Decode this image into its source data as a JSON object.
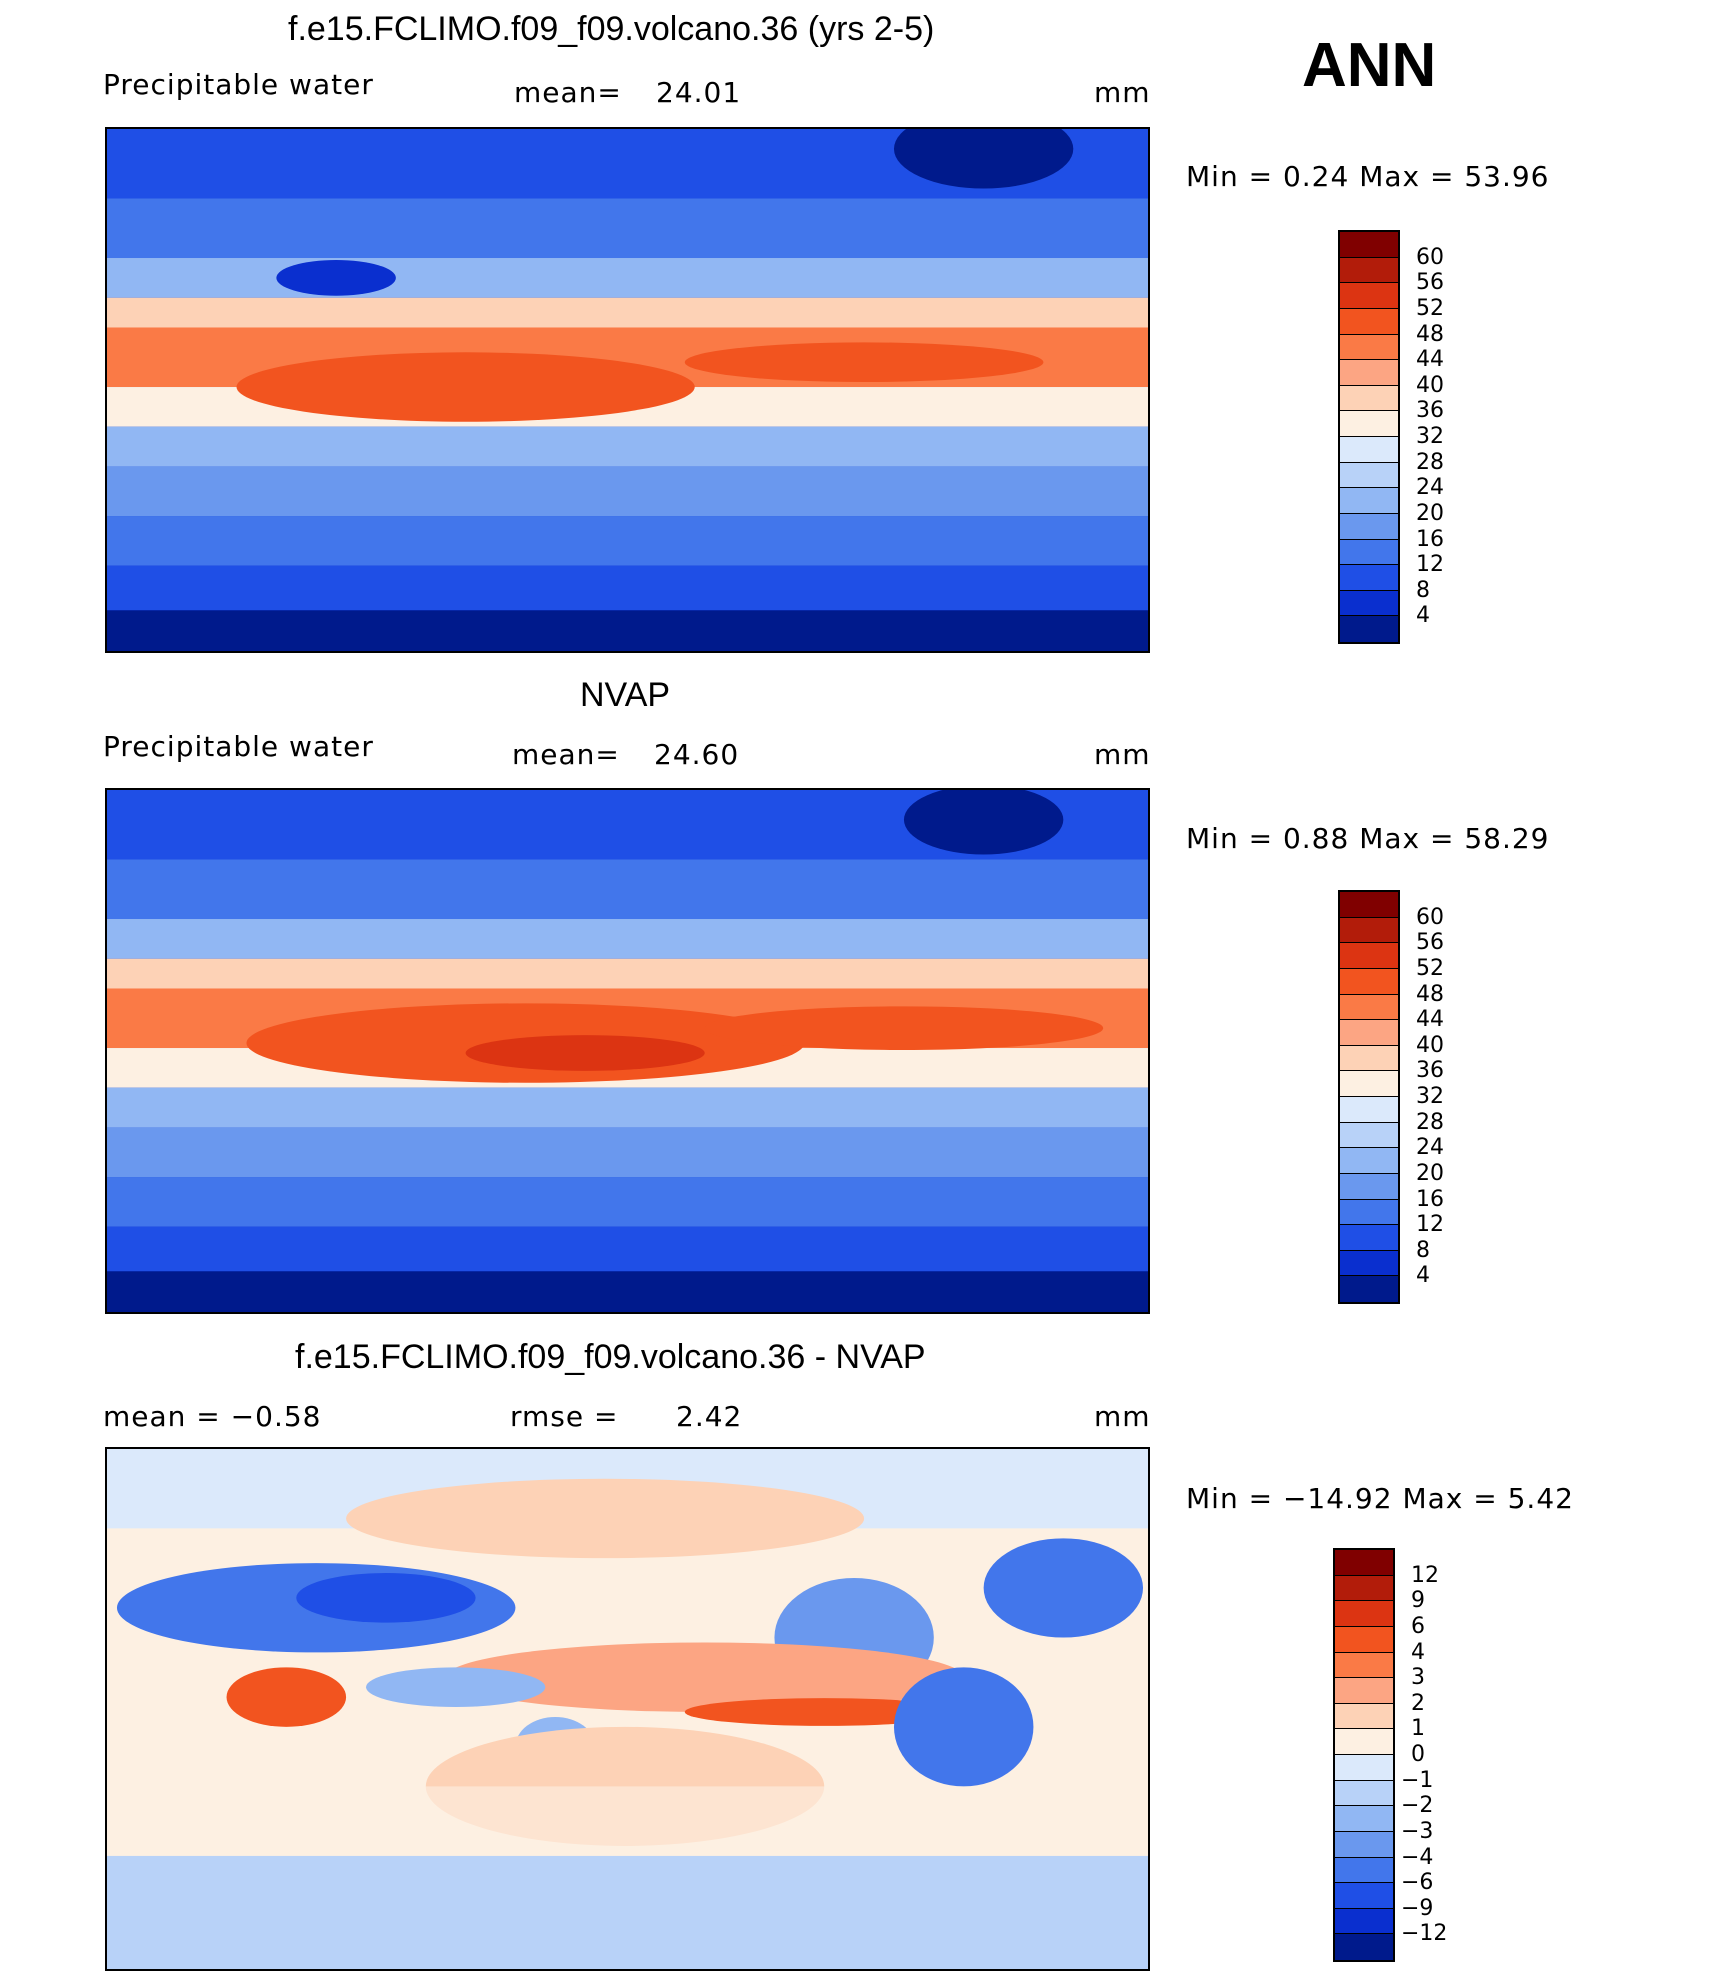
{
  "season": "ANN",
  "units": "mm",
  "coast_icon": "coastline-outline",
  "panels": [
    {
      "id": "model",
      "title": "f.e15.FCLIMO.f09_f09.volcano.36 (yrs 2-5)",
      "left_label": "Precipitable  water",
      "stat_label": "mean=",
      "stat_value": "24.01",
      "units": "mm",
      "minmax_label": "Min  =     0.24  Max  =     53.96",
      "colorbar": {
        "levels": [
          "60",
          "56",
          "52",
          "48",
          "44",
          "40",
          "36",
          "32",
          "28",
          "24",
          "20",
          "16",
          "12",
          "8",
          "4"
        ],
        "colors": [
          "#800000",
          "#b21c0a",
          "#dc3412",
          "#f2541f",
          "#fa7a46",
          "#fca583",
          "#fdd2b6",
          "#fdf0e2",
          "#dbe9fb",
          "#b8d2f8",
          "#91b7f3",
          "#6a98ee",
          "#4276eb",
          "#1f4fe6",
          "#0a2fcf",
          "#001a8c"
        ]
      }
    },
    {
      "id": "obs",
      "title": "NVAP",
      "left_label": "Precipitable  water",
      "stat_label": "mean=",
      "stat_value": "24.60",
      "units": "mm",
      "minmax_label": "Min  =     0.88  Max  =     58.29",
      "colorbar": {
        "levels": [
          "60",
          "56",
          "52",
          "48",
          "44",
          "40",
          "36",
          "32",
          "28",
          "24",
          "20",
          "16",
          "12",
          "8",
          "4"
        ],
        "colors": [
          "#800000",
          "#b21c0a",
          "#dc3412",
          "#f2541f",
          "#fa7a46",
          "#fca583",
          "#fdd2b6",
          "#fdf0e2",
          "#dbe9fb",
          "#b8d2f8",
          "#91b7f3",
          "#6a98ee",
          "#4276eb",
          "#1f4fe6",
          "#0a2fcf",
          "#001a8c"
        ]
      }
    },
    {
      "id": "diff",
      "title": "f.e15.FCLIMO.f09_f09.volcano.36 - NVAP",
      "left_label": "mean  =     −0.58",
      "stat_label": "rmse  =",
      "stat_value": "2.42",
      "units": "mm",
      "minmax_label": "Min  =  −14.92  Max  =      5.42",
      "colorbar": {
        "levels": [
          "12",
          "9",
          "6",
          "4",
          "3",
          "2",
          "1",
          "0",
          "−1",
          "−2",
          "−3",
          "−4",
          "−6",
          "−9",
          "−12"
        ],
        "colors": [
          "#800000",
          "#b21c0a",
          "#dc3412",
          "#f2541f",
          "#fa7a46",
          "#fca583",
          "#fdd2b6",
          "#fdf0e2",
          "#dbe9fb",
          "#b8d2f8",
          "#91b7f3",
          "#6a98ee",
          "#4276eb",
          "#1f4fe6",
          "#0a2fcf",
          "#001a8c"
        ]
      }
    }
  ]
}
